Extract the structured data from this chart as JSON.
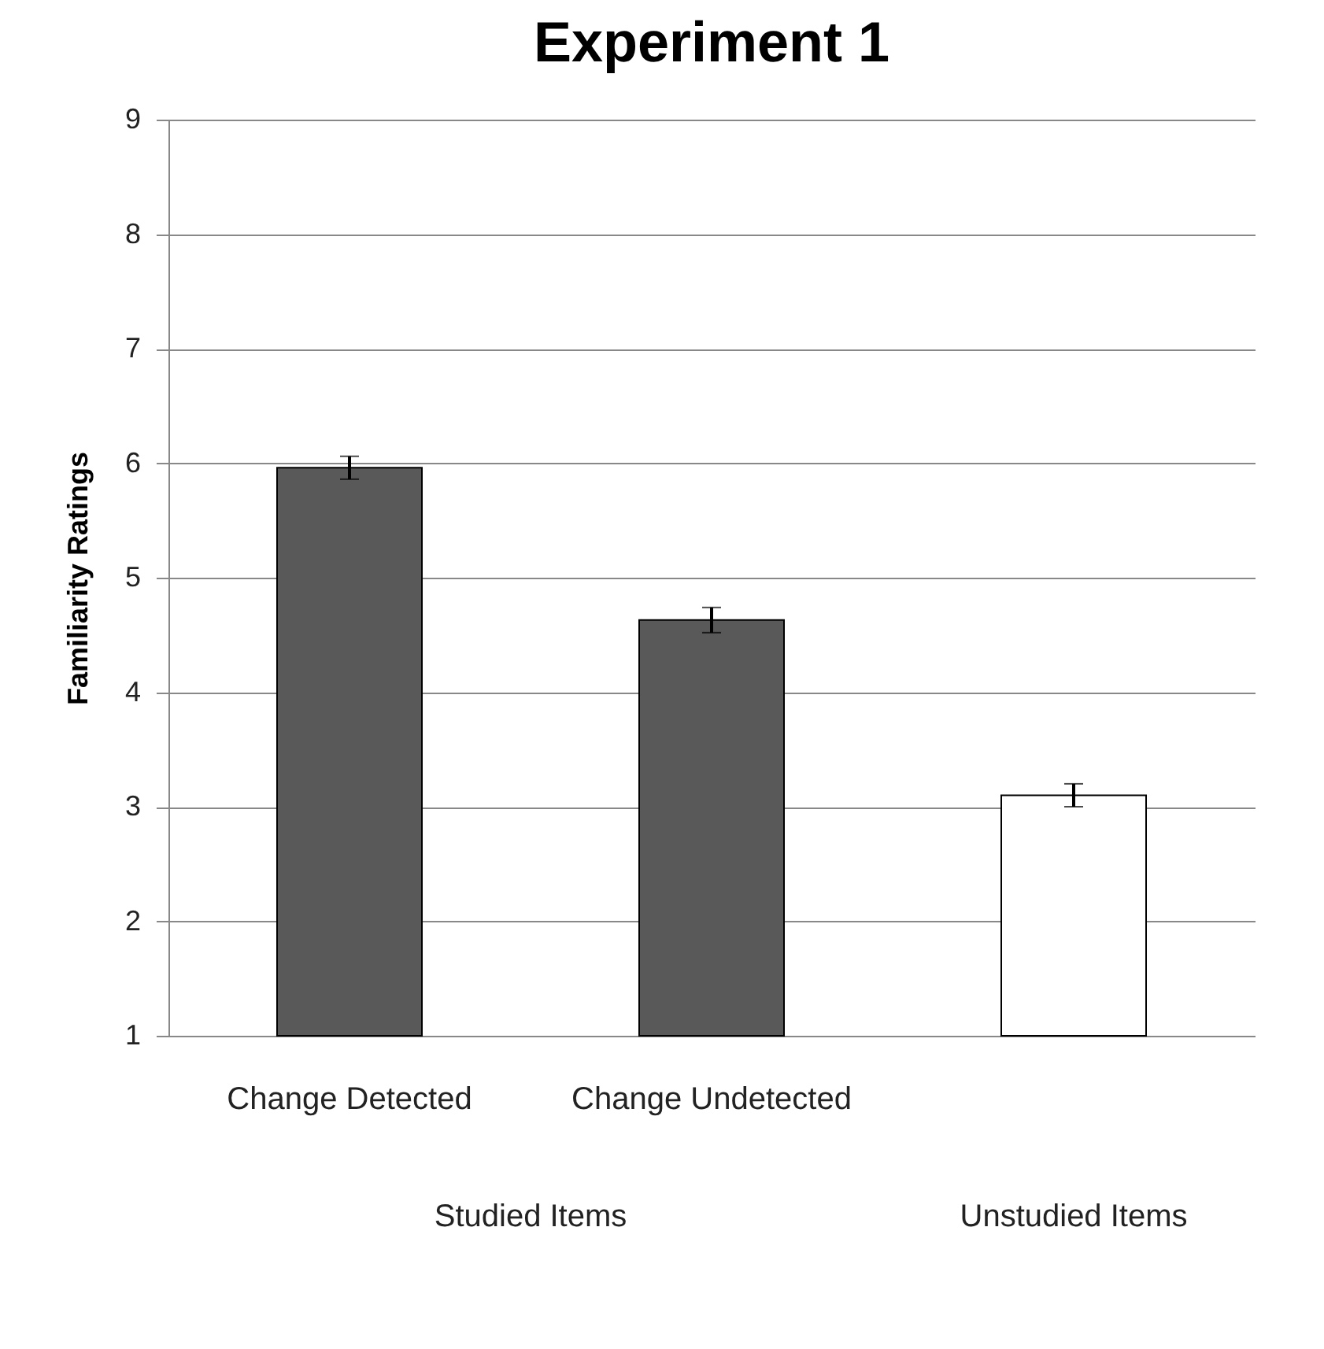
{
  "chart_data": {
    "type": "bar",
    "title": "Experiment 1",
    "ylabel": "Familiarity Ratings",
    "categories": [
      "Change Detected",
      "Change Undetected",
      null
    ],
    "values": [
      5.96,
      4.63,
      3.1
    ],
    "errors": [
      0.1,
      0.11,
      0.1
    ],
    "colors": [
      "#595959",
      "#595959",
      "#ffffff"
    ],
    "annotations": [
      "Studied Items",
      "Unstudied Items"
    ],
    "ylim": [
      1,
      9
    ],
    "yticks": [
      1,
      2,
      3,
      4,
      5,
      6,
      7,
      8,
      9
    ],
    "grid": "y"
  }
}
